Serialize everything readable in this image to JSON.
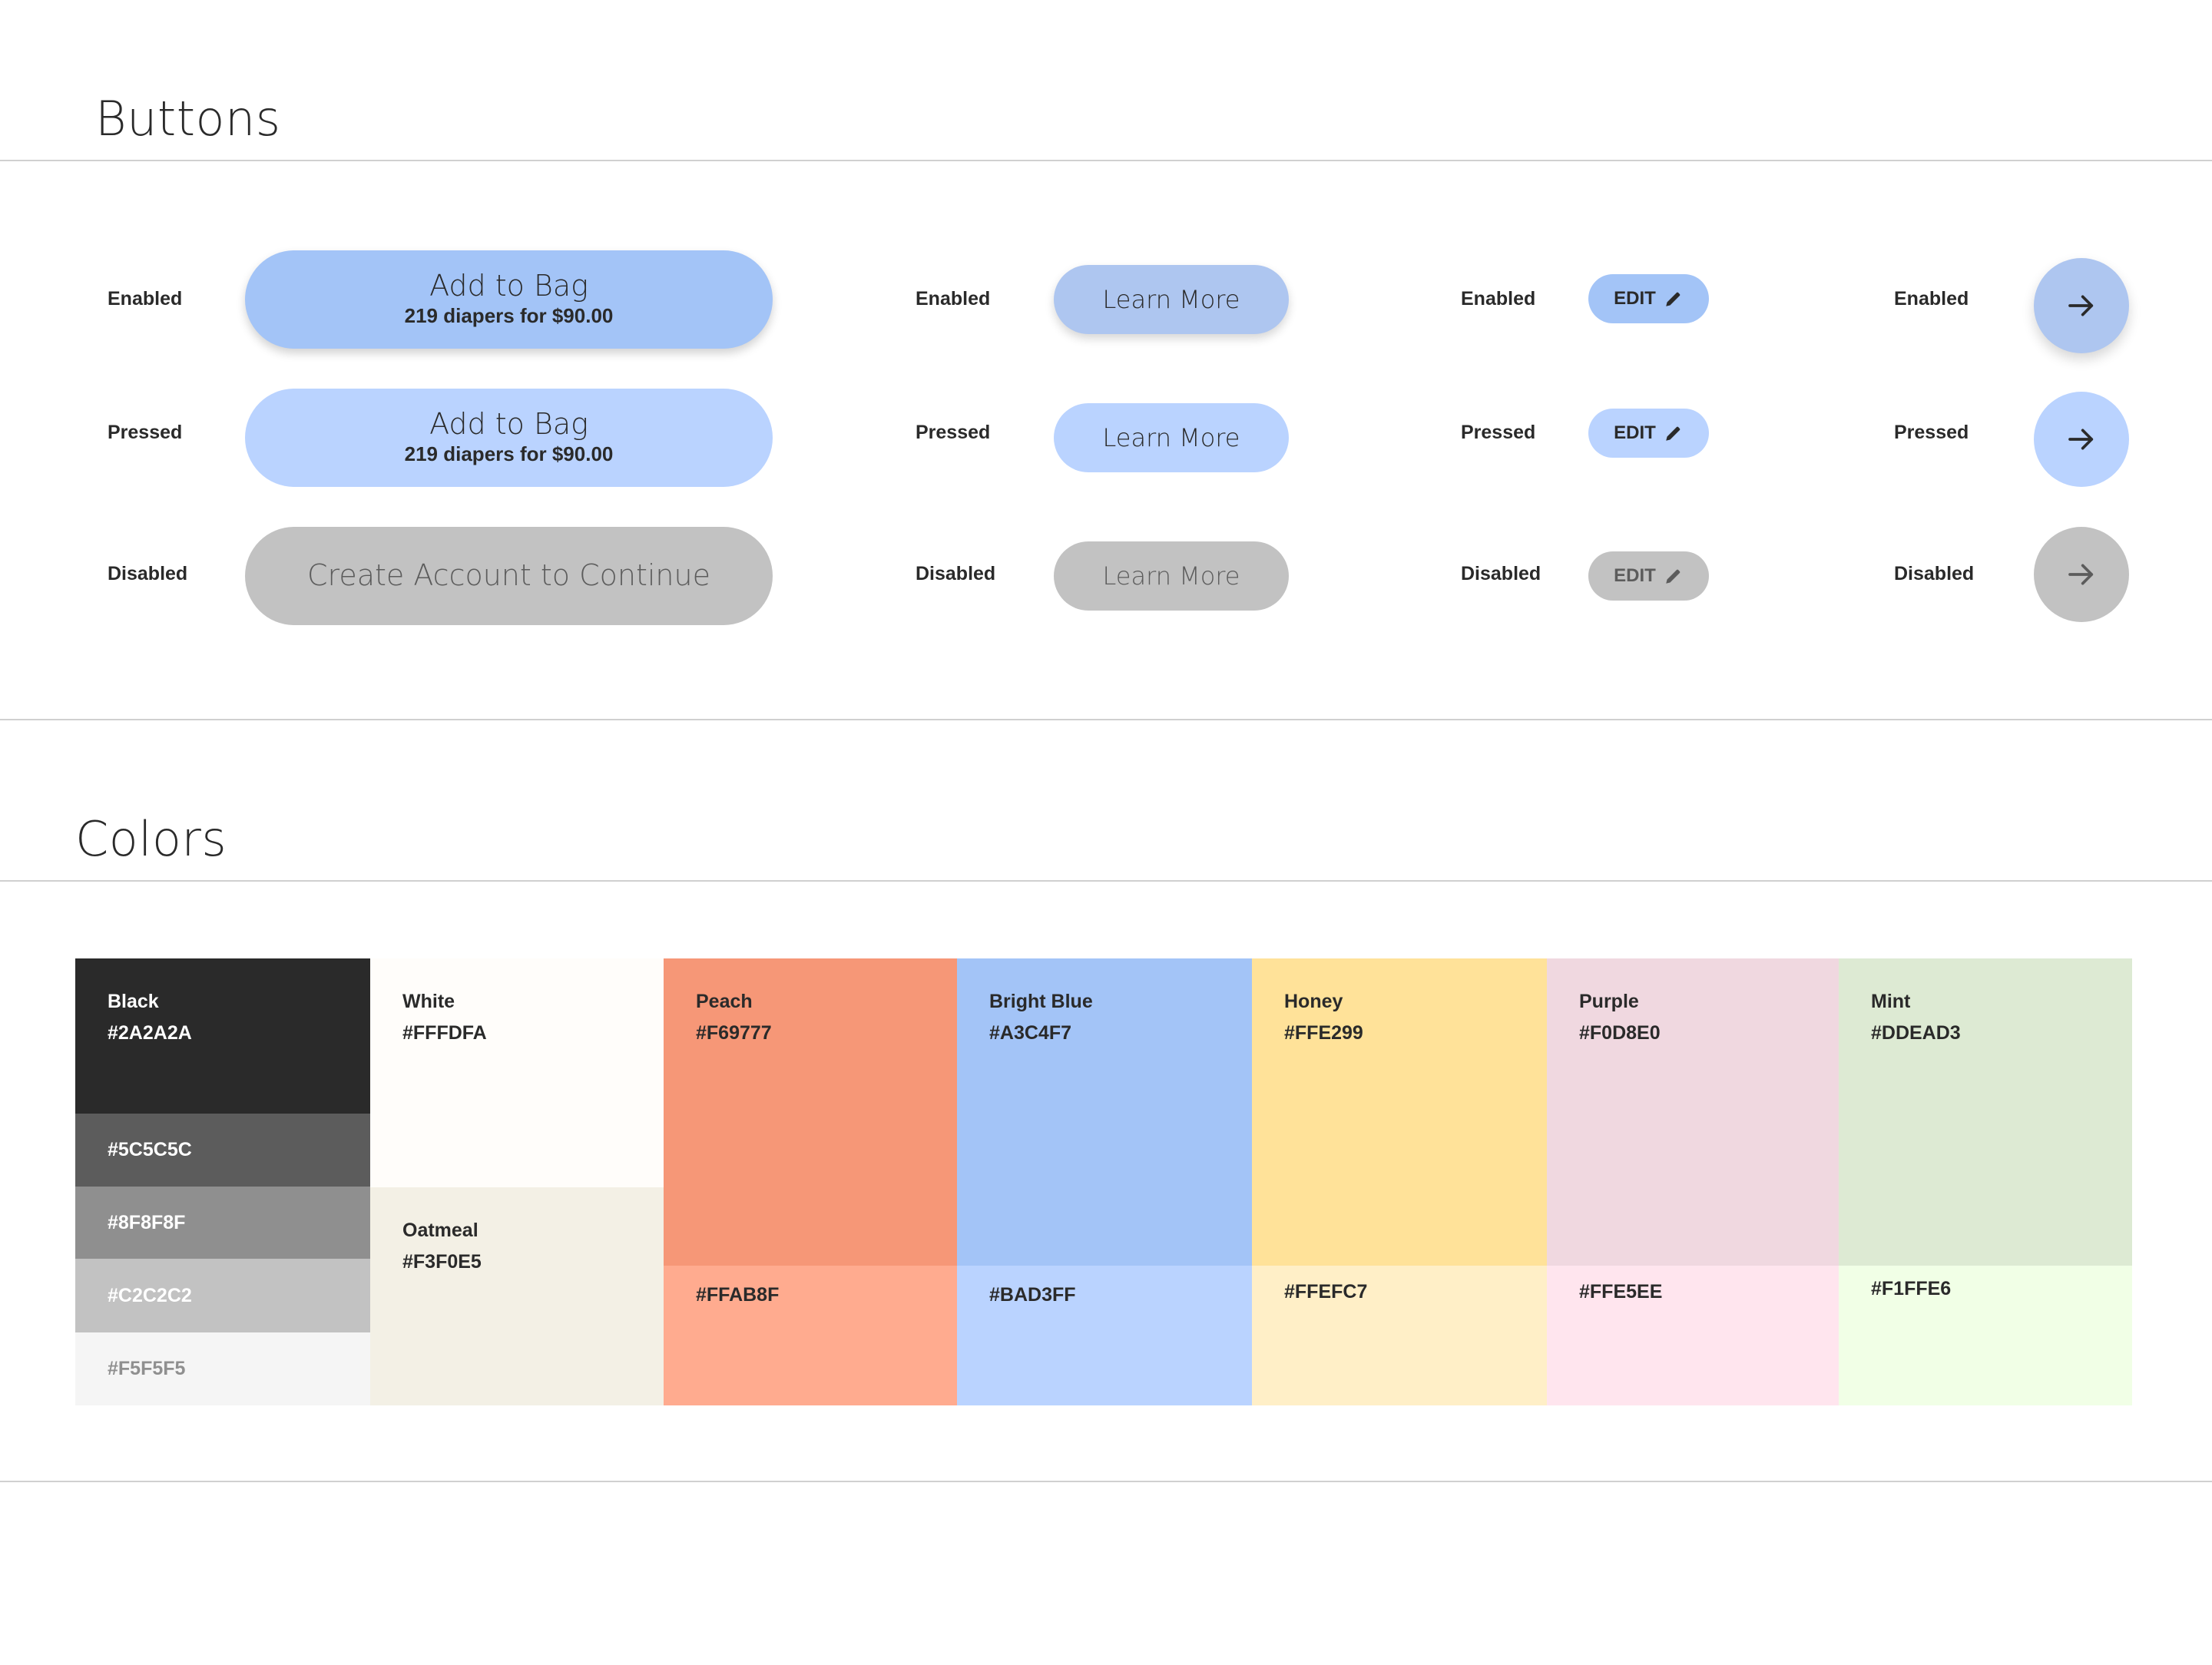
{
  "buttons_section": {
    "title": "Buttons",
    "states": {
      "enabled": "Enabled",
      "pressed": "Pressed",
      "disabled": "Disabled"
    },
    "bag_button": {
      "label": "Add to Bag",
      "sublabel": "219 diapers for $90.00",
      "disabled_label": "Create Account to Continue"
    },
    "learn_more_button": {
      "label": "Learn More"
    },
    "edit_button": {
      "label": "EDIT",
      "icon": "pencil-icon"
    },
    "arrow_button": {
      "icon": "arrow-right-icon"
    }
  },
  "colors_section": {
    "title": "Colors",
    "black": {
      "name": "Black",
      "hex": "#2A2A2A",
      "shades": [
        "#5C5C5C",
        "#8F8F8F",
        "#C2C2C2",
        "#F5F5F5"
      ]
    },
    "white": {
      "name": "White",
      "hex": "#FFFDFA"
    },
    "oatmeal": {
      "name": "Oatmeal",
      "hex": "#F3F0E5"
    },
    "peach": {
      "name": "Peach",
      "hex": "#F69777",
      "light_hex": "#FFAB8F"
    },
    "bright_blue": {
      "name": "Bright Blue",
      "hex": "#A3C4F7",
      "light_hex": "#BAD3FF"
    },
    "honey": {
      "name": "Honey",
      "hex": "#FFE299",
      "light_hex": "#FFEFC7"
    },
    "purple": {
      "name": "Purple",
      "hex": "#F0D8E0",
      "light_hex": "#FFE5EE"
    },
    "mint": {
      "name": "Mint",
      "hex": "#DDEAD3",
      "light_hex": "#F1FFE6"
    }
  }
}
